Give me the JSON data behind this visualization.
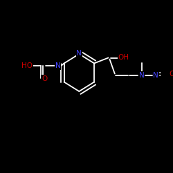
{
  "background_color": "#000000",
  "bond_color": "#ffffff",
  "atom_colors": {
    "N": "#4444ff",
    "O": "#cc0000",
    "C": "#ffffff"
  },
  "figsize": [
    2.5,
    2.5
  ],
  "dpi": 100,
  "bond_lw": 1.3,
  "font_size": 7.5
}
